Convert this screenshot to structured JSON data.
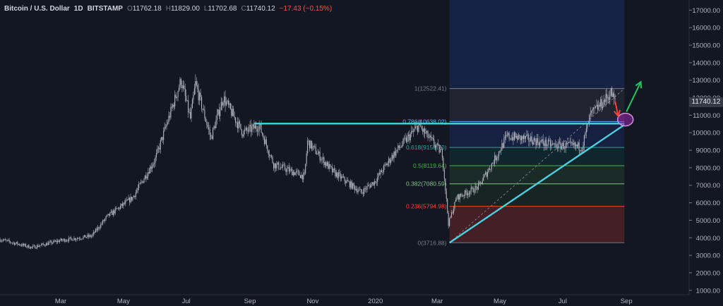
{
  "header": {
    "symbol": "Bitcoin / U.S. Dollar",
    "interval": "1D",
    "exchange": "BITSTAMP",
    "o_label": "O",
    "o": "11762.18",
    "h_label": "H",
    "h": "11829.00",
    "l_label": "L",
    "l": "11702.68",
    "c_label": "C",
    "c": "11740.12",
    "change": "−17.43 (−0.15%)"
  },
  "price_tag": "11740.12",
  "colors": {
    "background": "#131722",
    "candle": "#b2b5be",
    "trendline": "#4dd0e1",
    "fib_top_band": "#2962ff",
    "fib_bottom_band": "#b71c1c",
    "up_arrow": "#22c55e",
    "down_arrow": "#ef4444",
    "circle": "#9c27b0"
  },
  "chart_data": {
    "type": "candlestick",
    "x_axis": {
      "ticks": [
        {
          "date": "2019-03-01",
          "label": "Mar"
        },
        {
          "date": "2019-05-01",
          "label": "May"
        },
        {
          "date": "2019-07-01",
          "label": "Jul"
        },
        {
          "date": "2019-09-01",
          "label": "Sep"
        },
        {
          "date": "2019-11-01",
          "label": "Nov"
        },
        {
          "date": "2020-01-01",
          "label": "2020"
        },
        {
          "date": "2020-03-01",
          "label": "Mar"
        },
        {
          "date": "2020-05-01",
          "label": "May"
        },
        {
          "date": "2020-07-01",
          "label": "Jul"
        },
        {
          "date": "2020-09-01",
          "label": "Sep"
        }
      ]
    },
    "y_axis": {
      "range": [
        500,
        17500
      ],
      "ticks": [
        "17000.00",
        "16000.00",
        "15000.00",
        "14000.00",
        "13000.00",
        "12000.00",
        "11000.00",
        "10000.00",
        "9000.00",
        "8000.00",
        "7000.00",
        "6000.00",
        "5000.00",
        "4000.00",
        "3000.00",
        "2000.00",
        "1000.00"
      ]
    },
    "price_path": [
      {
        "date": "2019-01-01",
        "close": 3900
      },
      {
        "date": "2019-02-01",
        "close": 3450
      },
      {
        "date": "2019-03-01",
        "close": 3850
      },
      {
        "date": "2019-03-31",
        "close": 4100
      },
      {
        "date": "2019-04-15",
        "close": 5200
      },
      {
        "date": "2019-05-10",
        "close": 6300
      },
      {
        "date": "2019-06-01",
        "close": 8500
      },
      {
        "date": "2019-06-26",
        "close": 13000
      },
      {
        "date": "2019-07-05",
        "close": 10800
      },
      {
        "date": "2019-07-10",
        "close": 12800
      },
      {
        "date": "2019-07-25",
        "close": 9700
      },
      {
        "date": "2019-08-06",
        "close": 12000
      },
      {
        "date": "2019-08-25",
        "close": 10000
      },
      {
        "date": "2019-09-10",
        "close": 10400
      },
      {
        "date": "2019-09-24",
        "close": 8200
      },
      {
        "date": "2019-10-24",
        "close": 7500
      },
      {
        "date": "2019-10-27",
        "close": 9500
      },
      {
        "date": "2019-11-20",
        "close": 7800
      },
      {
        "date": "2019-12-18",
        "close": 6600
      },
      {
        "date": "2019-12-31",
        "close": 7200
      },
      {
        "date": "2020-01-19",
        "close": 8800
      },
      {
        "date": "2020-02-12",
        "close": 10400
      },
      {
        "date": "2020-03-06",
        "close": 8800
      },
      {
        "date": "2020-03-12",
        "close": 4800
      },
      {
        "date": "2020-03-20",
        "close": 6300
      },
      {
        "date": "2020-04-10",
        "close": 6900
      },
      {
        "date": "2020-04-29",
        "close": 8800
      },
      {
        "date": "2020-05-08",
        "close": 9800
      },
      {
        "date": "2020-06-01",
        "close": 9600
      },
      {
        "date": "2020-06-20",
        "close": 9300
      },
      {
        "date": "2020-07-20",
        "close": 9200
      },
      {
        "date": "2020-07-28",
        "close": 11000
      },
      {
        "date": "2020-08-10",
        "close": 11800
      },
      {
        "date": "2020-08-17",
        "close": 12300
      },
      {
        "date": "2020-08-21",
        "close": 11740
      }
    ],
    "fibonacci": {
      "start_date": "2020-03-13",
      "end_date": "2020-08-30",
      "levels": [
        {
          "ratio": 1,
          "price": 12522.41,
          "label": "1(12522.41)",
          "color": "#787b86"
        },
        {
          "ratio": 0.786,
          "price": 10638.02,
          "label": "0.786(10638.02)",
          "color": "#64b5f6"
        },
        {
          "ratio": 0.618,
          "price": 9158.7,
          "label": "0.618(9158.70)",
          "color": "#26a69a"
        },
        {
          "ratio": 0.5,
          "price": 8119.64,
          "label": "0.5(8119.64)",
          "color": "#4caf50"
        },
        {
          "ratio": 0.382,
          "price": 7080.59,
          "label": "0.382(7080.59)",
          "color": "#81c784"
        },
        {
          "ratio": 0.236,
          "price": 5794.98,
          "label": "0.236(5794.98)",
          "color": "#f44336"
        },
        {
          "ratio": 0,
          "price": 3716.88,
          "label": "0(3716.88)",
          "color": "#787b86"
        }
      ]
    },
    "drawings": {
      "horizontal_line": {
        "from": {
          "date": "2019-09-05",
          "price": 10520
        },
        "to": {
          "date": "2020-08-30",
          "price": 10520
        }
      },
      "trendline": {
        "from": {
          "date": "2020-03-13",
          "price": 3716.88
        },
        "to": {
          "date": "2020-08-30",
          "price": 10450
        }
      },
      "circle": {
        "date": "2020-08-31",
        "price": 10750
      },
      "down_arrow": {
        "from": {
          "date": "2020-08-21",
          "price": 11800
        },
        "to": {
          "date": "2020-08-24",
          "price": 10950
        }
      },
      "up_arrow": {
        "from": {
          "date": "2020-09-01",
          "price": 11200
        },
        "to": {
          "date": "2020-09-15",
          "price": 12900
        }
      }
    }
  }
}
